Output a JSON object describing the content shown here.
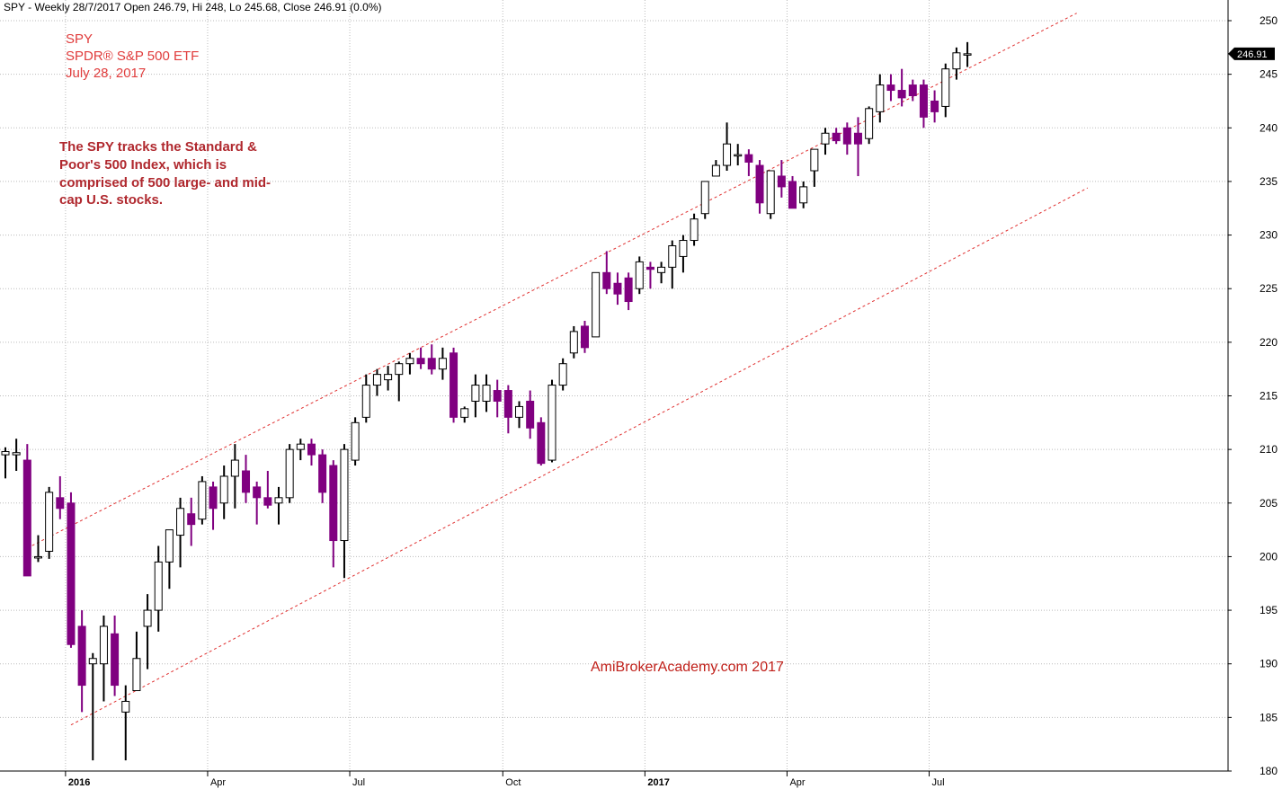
{
  "header": "SPY - Weekly 28/7/2017 Open 246.79, Hi 248, Lo 245.68, Close 246.91 (0.0%)",
  "notes": {
    "ticker": "SPY",
    "name": "SPDR® S&P 500 ETF",
    "date": "July 28, 2017",
    "description": [
      "The SPY tracks the Standard &",
      "Poor's 500 Index, which is",
      "comprised of 500 large- and mid-",
      "cap U.S. stocks."
    ]
  },
  "watermark": "AmiBrokerAcademy.com  2017",
  "last_price_label": "246.91",
  "colors": {
    "up_fill": "#ffffff",
    "down_fill": "#800080",
    "candle_outline": "#000000",
    "channel_line": "#e03030",
    "grid": "#bbbbbb",
    "price_tag_bg": "#000000"
  },
  "chart_data": {
    "type": "candlestick",
    "timeframe": "weekly",
    "ylim": [
      180,
      250
    ],
    "y_ticks": [
      180,
      185,
      190,
      195,
      200,
      205,
      210,
      215,
      220,
      225,
      230,
      235,
      240,
      245,
      250
    ],
    "x_ticks": [
      {
        "label": "2016",
        "index": 6,
        "bold": true
      },
      {
        "label": "Apr",
        "index": 19,
        "bold": false
      },
      {
        "label": "Jul",
        "index": 32,
        "bold": false
      },
      {
        "label": "Oct",
        "index": 46,
        "bold": false
      },
      {
        "label": "2017",
        "index": 59,
        "bold": true
      },
      {
        "label": "Apr",
        "index": 72,
        "bold": false
      },
      {
        "label": "Jul",
        "index": 85,
        "bold": false
      }
    ],
    "series": [
      {
        "o": 209.5,
        "h": 210.2,
        "l": 207.3,
        "c": 209.8
      },
      {
        "o": 209.5,
        "h": 211.0,
        "l": 208.0,
        "c": 209.7
      },
      {
        "o": 209.0,
        "h": 210.5,
        "l": 198.5,
        "c": 198.2
      },
      {
        "o": 200.0,
        "h": 202.0,
        "l": 199.5,
        "c": 200.0
      },
      {
        "o": 200.5,
        "h": 206.5,
        "l": 199.8,
        "c": 206.0
      },
      {
        "o": 205.5,
        "h": 207.5,
        "l": 203.5,
        "c": 204.5
      },
      {
        "o": 205.0,
        "h": 206.0,
        "l": 191.5,
        "c": 191.8
      },
      {
        "o": 193.5,
        "h": 195.0,
        "l": 185.5,
        "c": 188.0
      },
      {
        "o": 190.0,
        "h": 191.0,
        "l": 181.0,
        "c": 190.5
      },
      {
        "o": 190.0,
        "h": 194.5,
        "l": 186.5,
        "c": 193.5
      },
      {
        "o": 192.8,
        "h": 194.5,
        "l": 187.0,
        "c": 188.0
      },
      {
        "o": 185.5,
        "h": 188.0,
        "l": 181.0,
        "c": 186.5
      },
      {
        "o": 187.5,
        "h": 193.0,
        "l": 187.5,
        "c": 190.5
      },
      {
        "o": 193.5,
        "h": 196.5,
        "l": 189.5,
        "c": 195.0
      },
      {
        "o": 195.0,
        "h": 201.0,
        "l": 193.0,
        "c": 199.5
      },
      {
        "o": 199.5,
        "h": 202.5,
        "l": 197.0,
        "c": 202.5
      },
      {
        "o": 202.0,
        "h": 205.5,
        "l": 199.0,
        "c": 204.5
      },
      {
        "o": 204.0,
        "h": 205.5,
        "l": 201.0,
        "c": 203.0
      },
      {
        "o": 203.5,
        "h": 207.5,
        "l": 203.0,
        "c": 207.0
      },
      {
        "o": 206.5,
        "h": 207.0,
        "l": 202.5,
        "c": 204.5
      },
      {
        "o": 205.0,
        "h": 208.5,
        "l": 203.5,
        "c": 207.5
      },
      {
        "o": 207.5,
        "h": 210.5,
        "l": 204.5,
        "c": 209.0
      },
      {
        "o": 208.0,
        "h": 209.5,
        "l": 205.0,
        "c": 206.0
      },
      {
        "o": 206.5,
        "h": 207.0,
        "l": 203.0,
        "c": 205.5
      },
      {
        "o": 205.5,
        "h": 208.0,
        "l": 204.5,
        "c": 204.8
      },
      {
        "o": 205.0,
        "h": 206.5,
        "l": 203.0,
        "c": 205.5
      },
      {
        "o": 205.5,
        "h": 210.5,
        "l": 205.0,
        "c": 210.0
      },
      {
        "o": 210.0,
        "h": 211.0,
        "l": 209.0,
        "c": 210.5
      },
      {
        "o": 210.5,
        "h": 211.0,
        "l": 208.5,
        "c": 209.5
      },
      {
        "o": 209.5,
        "h": 210.0,
        "l": 205.0,
        "c": 206.0
      },
      {
        "o": 208.5,
        "h": 209.0,
        "l": 199.0,
        "c": 201.5
      },
      {
        "o": 201.5,
        "h": 210.5,
        "l": 198.0,
        "c": 210.0
      },
      {
        "o": 209.0,
        "h": 213.0,
        "l": 208.5,
        "c": 212.5
      },
      {
        "o": 213.0,
        "h": 217.0,
        "l": 212.5,
        "c": 216.0
      },
      {
        "o": 216.0,
        "h": 217.5,
        "l": 215.0,
        "c": 217.0
      },
      {
        "o": 216.5,
        "h": 217.8,
        "l": 215.5,
        "c": 217.0
      },
      {
        "o": 217.0,
        "h": 218.2,
        "l": 214.5,
        "c": 218.0
      },
      {
        "o": 218.0,
        "h": 219.0,
        "l": 217.0,
        "c": 218.5
      },
      {
        "o": 218.5,
        "h": 219.5,
        "l": 217.5,
        "c": 218.0
      },
      {
        "o": 218.5,
        "h": 219.8,
        "l": 217.0,
        "c": 217.5
      },
      {
        "o": 217.5,
        "h": 219.5,
        "l": 216.5,
        "c": 218.5
      },
      {
        "o": 219.0,
        "h": 219.5,
        "l": 212.5,
        "c": 213.0
      },
      {
        "o": 213.0,
        "h": 214.0,
        "l": 212.5,
        "c": 213.8
      },
      {
        "o": 214.5,
        "h": 217.0,
        "l": 213.0,
        "c": 216.0
      },
      {
        "o": 214.5,
        "h": 217.0,
        "l": 213.5,
        "c": 216.0
      },
      {
        "o": 215.5,
        "h": 216.5,
        "l": 213.0,
        "c": 214.5
      },
      {
        "o": 215.5,
        "h": 216.0,
        "l": 211.5,
        "c": 213.0
      },
      {
        "o": 213.0,
        "h": 214.5,
        "l": 212.0,
        "c": 214.0
      },
      {
        "o": 214.5,
        "h": 215.5,
        "l": 211.0,
        "c": 212.0
      },
      {
        "o": 212.5,
        "h": 213.0,
        "l": 208.5,
        "c": 208.7
      },
      {
        "o": 209.0,
        "h": 216.5,
        "l": 208.8,
        "c": 216.0
      },
      {
        "o": 216.0,
        "h": 218.5,
        "l": 215.5,
        "c": 218.0
      },
      {
        "o": 219.0,
        "h": 221.5,
        "l": 218.5,
        "c": 221.0
      },
      {
        "o": 221.5,
        "h": 222.0,
        "l": 219.0,
        "c": 219.5
      },
      {
        "o": 220.5,
        "h": 226.5,
        "l": 220.5,
        "c": 226.5
      },
      {
        "o": 226.5,
        "h": 228.5,
        "l": 224.5,
        "c": 225.0
      },
      {
        "o": 225.5,
        "h": 226.5,
        "l": 223.5,
        "c": 224.5
      },
      {
        "o": 226.0,
        "h": 226.5,
        "l": 223.0,
        "c": 223.8
      },
      {
        "o": 225.0,
        "h": 228.0,
        "l": 224.5,
        "c": 227.5
      },
      {
        "o": 227.0,
        "h": 227.5,
        "l": 225.0,
        "c": 226.8
      },
      {
        "o": 226.5,
        "h": 227.5,
        "l": 225.5,
        "c": 227.0
      },
      {
        "o": 227.0,
        "h": 229.5,
        "l": 225.0,
        "c": 229.0
      },
      {
        "o": 228.0,
        "h": 230.0,
        "l": 226.5,
        "c": 229.5
      },
      {
        "o": 229.5,
        "h": 232.0,
        "l": 229.0,
        "c": 231.5
      },
      {
        "o": 232.0,
        "h": 235.0,
        "l": 231.5,
        "c": 235.0
      },
      {
        "o": 235.5,
        "h": 237.0,
        "l": 235.5,
        "c": 236.5
      },
      {
        "o": 236.5,
        "h": 240.5,
        "l": 236.0,
        "c": 238.5
      },
      {
        "o": 237.5,
        "h": 238.5,
        "l": 236.5,
        "c": 237.5
      },
      {
        "o": 237.5,
        "h": 238.0,
        "l": 235.5,
        "c": 236.8
      },
      {
        "o": 236.5,
        "h": 237.0,
        "l": 232.0,
        "c": 233.0
      },
      {
        "o": 232.0,
        "h": 236.0,
        "l": 231.5,
        "c": 236.0
      },
      {
        "o": 235.5,
        "h": 237.0,
        "l": 233.5,
        "c": 234.5
      },
      {
        "o": 235.0,
        "h": 235.5,
        "l": 232.5,
        "c": 232.5
      },
      {
        "o": 233.0,
        "h": 235.0,
        "l": 232.5,
        "c": 234.5
      },
      {
        "o": 236.0,
        "h": 238.0,
        "l": 234.5,
        "c": 238.0
      },
      {
        "o": 238.5,
        "h": 240.0,
        "l": 237.5,
        "c": 239.5
      },
      {
        "o": 239.5,
        "h": 240.0,
        "l": 238.5,
        "c": 238.8
      },
      {
        "o": 240.0,
        "h": 240.5,
        "l": 237.5,
        "c": 238.5
      },
      {
        "o": 239.5,
        "h": 241.0,
        "l": 235.5,
        "c": 238.5
      },
      {
        "o": 239.0,
        "h": 242.0,
        "l": 238.5,
        "c": 241.8
      },
      {
        "o": 241.5,
        "h": 245.0,
        "l": 240.5,
        "c": 244.0
      },
      {
        "o": 244.0,
        "h": 245.0,
        "l": 242.5,
        "c": 243.5
      },
      {
        "o": 243.5,
        "h": 245.5,
        "l": 242.0,
        "c": 242.8
      },
      {
        "o": 244.0,
        "h": 244.5,
        "l": 242.5,
        "c": 243.0
      },
      {
        "o": 244.0,
        "h": 244.5,
        "l": 240.0,
        "c": 241.0
      },
      {
        "o": 242.5,
        "h": 243.5,
        "l": 240.5,
        "c": 241.5
      },
      {
        "o": 242.0,
        "h": 246.0,
        "l": 241.0,
        "c": 245.5
      },
      {
        "o": 245.5,
        "h": 247.5,
        "l": 244.5,
        "c": 247.0
      },
      {
        "o": 246.79,
        "h": 248.0,
        "l": 245.68,
        "c": 246.91
      }
    ],
    "channel_lines": [
      {
        "name": "upper",
        "x1": 2.0,
        "y1": 200.8,
        "x2": 98.0,
        "y2": 250.7
      },
      {
        "name": "lower",
        "x1": 6.0,
        "y1": 184.3,
        "x2": 99.0,
        "y2": 234.4
      }
    ],
    "grid": true
  }
}
